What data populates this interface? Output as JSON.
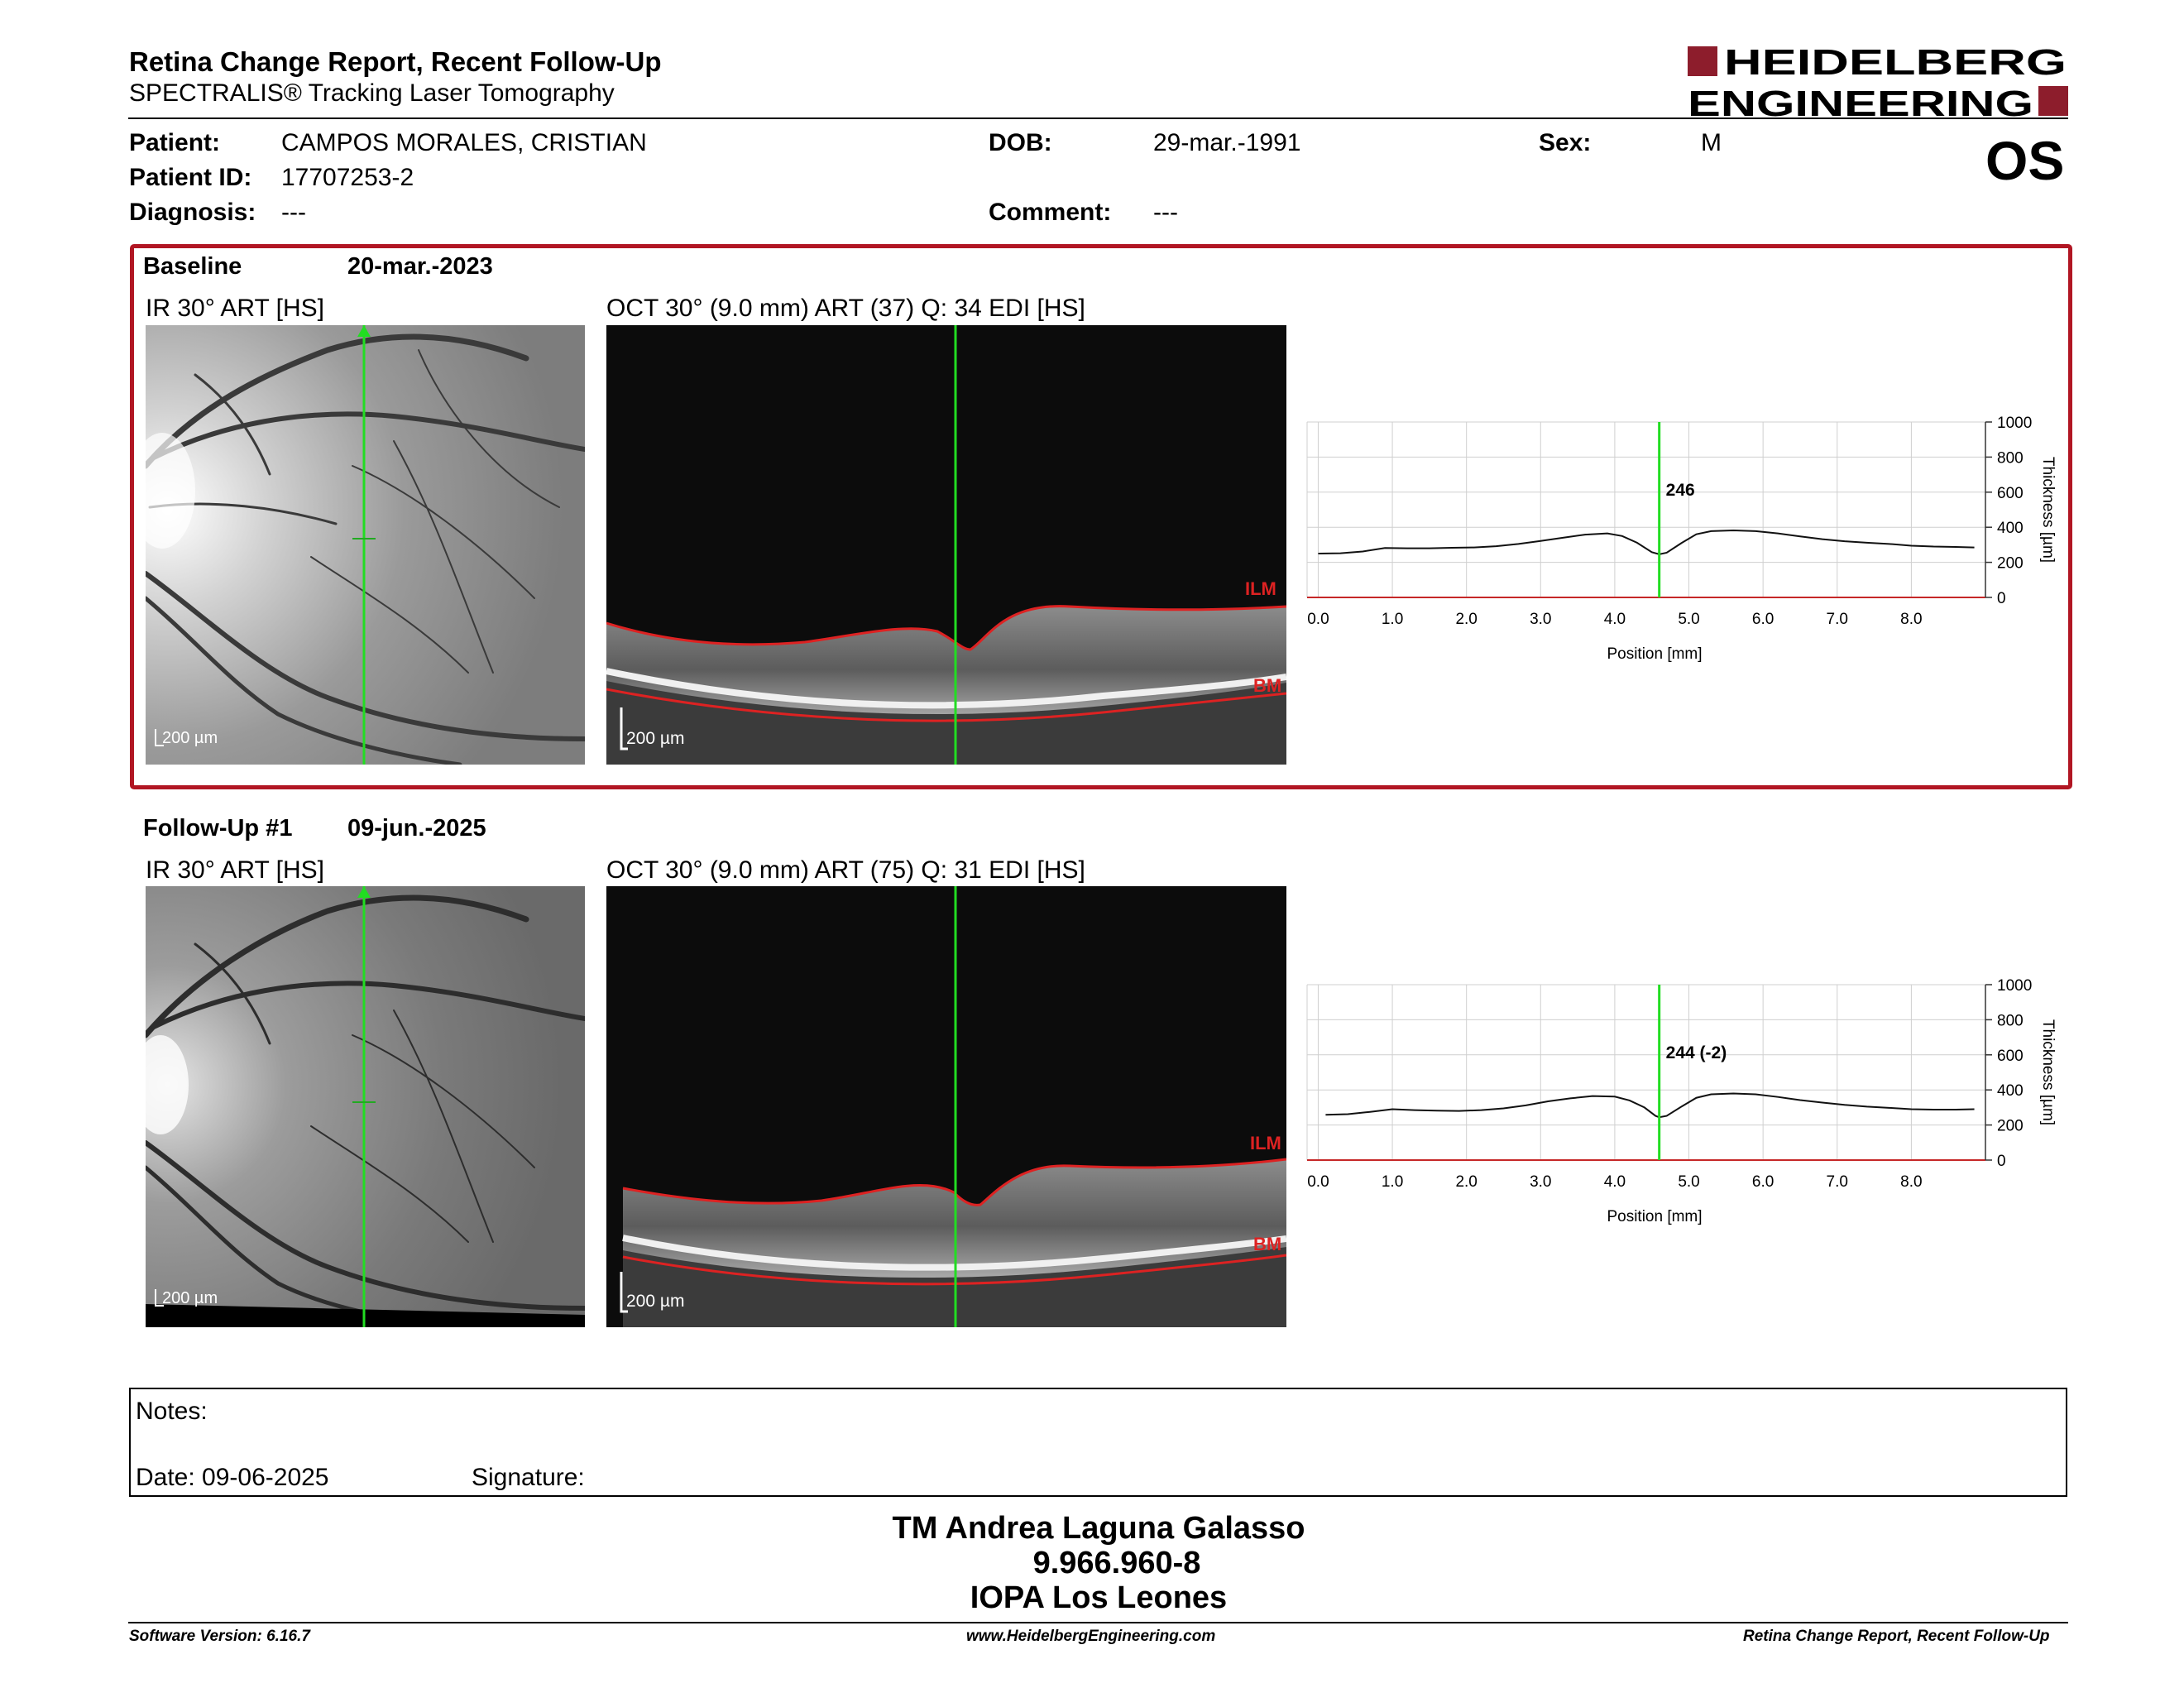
{
  "report": {
    "title": "Retina Change Report, Recent Follow-Up",
    "subtitle": "SPECTRALIS® Tracking Laser Tomography",
    "logo_line1": "HEIDELBERG",
    "logo_line2": "ENGINEERING",
    "eye": "OS"
  },
  "patient": {
    "patient_label": "Patient:",
    "name": "CAMPOS MORALES, CRISTIAN",
    "dob_label": "DOB:",
    "dob": "29-mar.-1991",
    "sex_label": "Sex:",
    "sex": "M",
    "id_label": "Patient ID:",
    "id": "17707253-2",
    "diagnosis_label": "Diagnosis:",
    "diagnosis": "---",
    "comment_label": "Comment:",
    "comment": "---"
  },
  "baseline": {
    "label": "Baseline",
    "date": "20-mar.-2023",
    "ir_label": "IR 30° ART [HS]",
    "oct_label": "OCT 30° (9.0 mm) ART (37) Q: 34 EDI [HS]",
    "ir_scale": "200 µm",
    "oct_scale": "200 µm",
    "ilm": "ILM",
    "bm": "BM",
    "value_label": "246"
  },
  "followup": {
    "label": "Follow-Up #1",
    "date": "09-jun.-2025",
    "ir_label": "IR 30° ART [HS]",
    "oct_label": "OCT 30° (9.0 mm) ART (75) Q: 31 EDI [HS]",
    "ir_scale": "200 µm",
    "oct_scale": "200 µm",
    "ilm": "ILM",
    "bm": "BM",
    "value_label": "244 (-2)"
  },
  "chart_data": [
    {
      "type": "line",
      "xlabel": "Position [mm]",
      "ylabel": "Thickness [µm]",
      "xlim": [
        -0.15,
        9.0
      ],
      "ylim": [
        0,
        1000
      ],
      "x_ticks": [
        "0.0",
        "1.0",
        "2.0",
        "3.0",
        "4.0",
        "5.0",
        "6.0",
        "7.0",
        "8.0"
      ],
      "y_ticks": [
        "0",
        "200",
        "400",
        "600",
        "800",
        "1000"
      ],
      "grid": true,
      "marker_x": 4.6,
      "marker_label": "246",
      "series": [
        {
          "x": [
            0.0,
            0.3,
            0.6,
            0.9,
            1.2,
            1.5,
            1.8,
            2.1,
            2.4,
            2.7,
            3.0,
            3.3,
            3.6,
            3.9,
            4.1,
            4.3,
            4.5,
            4.6,
            4.7,
            4.9,
            5.1,
            5.3,
            5.6,
            5.9,
            6.2,
            6.5,
            6.8,
            7.1,
            7.4,
            7.7,
            8.0,
            8.3,
            8.6,
            8.85
          ],
          "y": [
            250,
            252,
            262,
            282,
            280,
            280,
            283,
            285,
            292,
            305,
            322,
            340,
            358,
            365,
            350,
            312,
            258,
            246,
            255,
            310,
            360,
            378,
            382,
            378,
            365,
            348,
            332,
            320,
            312,
            305,
            295,
            290,
            288,
            285
          ]
        }
      ]
    },
    {
      "type": "line",
      "xlabel": "Position [mm]",
      "ylabel": "Thickness [µm]",
      "xlim": [
        -0.15,
        9.0
      ],
      "ylim": [
        0,
        1000
      ],
      "x_ticks": [
        "0.0",
        "1.0",
        "2.0",
        "3.0",
        "4.0",
        "5.0",
        "6.0",
        "7.0",
        "8.0"
      ],
      "y_ticks": [
        "0",
        "200",
        "400",
        "600",
        "800",
        "1000"
      ],
      "grid": true,
      "marker_x": 4.6,
      "marker_label": "244 (-2)",
      "series": [
        {
          "x": [
            0.1,
            0.4,
            0.7,
            1.0,
            1.3,
            1.6,
            1.9,
            2.2,
            2.5,
            2.8,
            3.1,
            3.4,
            3.7,
            4.0,
            4.2,
            4.4,
            4.55,
            4.6,
            4.7,
            4.9,
            5.1,
            5.3,
            5.6,
            5.9,
            6.2,
            6.5,
            6.8,
            7.1,
            7.4,
            7.7,
            8.0,
            8.3,
            8.6,
            8.85
          ],
          "y": [
            258,
            262,
            275,
            290,
            285,
            282,
            280,
            285,
            295,
            312,
            335,
            352,
            365,
            362,
            340,
            300,
            252,
            244,
            252,
            305,
            355,
            375,
            380,
            375,
            360,
            342,
            328,
            315,
            305,
            298,
            290,
            288,
            288,
            290
          ]
        }
      ]
    }
  ]
}
